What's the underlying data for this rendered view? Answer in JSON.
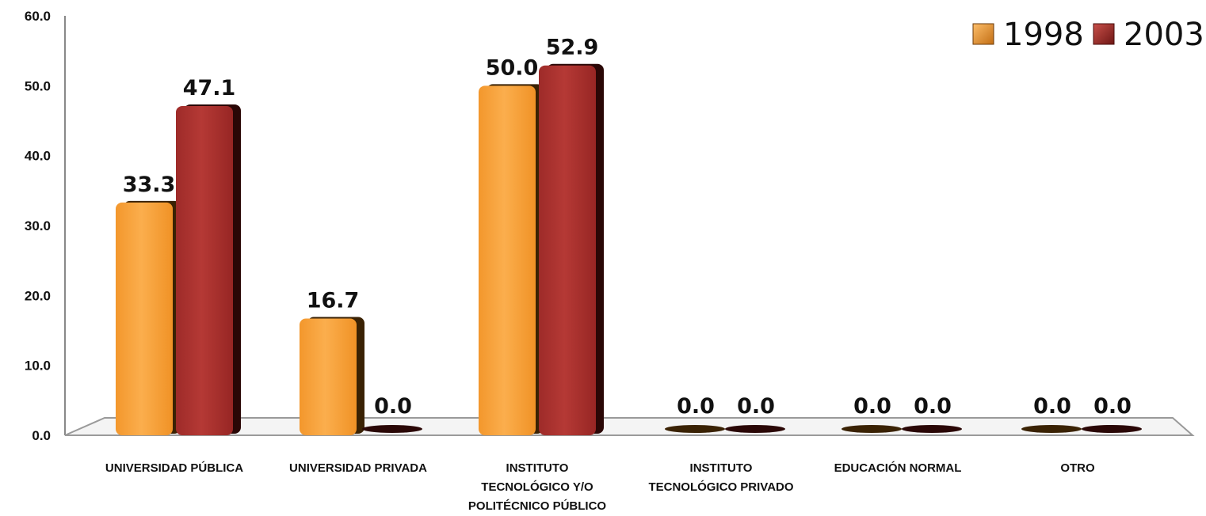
{
  "chart_data": {
    "type": "bar",
    "categories": [
      [
        "UNIVERSIDAD PÚBLICA"
      ],
      [
        "UNIVERSIDAD PRIVADA"
      ],
      [
        "INSTITUTO",
        "TECNOLÓGICO Y/O",
        "POLITÉCNICO PÚBLICO"
      ],
      [
        "INSTITUTO",
        "TECNOLÓGICO PRIVADO"
      ],
      [
        "EDUCACIÓN NORMAL"
      ],
      [
        "OTRO"
      ]
    ],
    "series": [
      {
        "name": "1998",
        "values": [
          33.3,
          16.7,
          50.0,
          0.0,
          0.0,
          0.0
        ],
        "value_labels": [
          "33.3",
          "16.7",
          "50.0",
          "0.0",
          "0.0",
          "0.0"
        ],
        "color": "#F7A23C"
      },
      {
        "name": "2003",
        "values": [
          47.1,
          0.0,
          52.9,
          0.0,
          0.0,
          0.0
        ],
        "value_labels": [
          "47.1",
          "0.0",
          "52.9",
          "0.0",
          "0.0",
          "0.0"
        ],
        "color": "#A8302E"
      }
    ],
    "yticks": [
      "0.0",
      "10.0",
      "20.0",
      "30.0",
      "40.0",
      "50.0",
      "60.0"
    ],
    "ylim": [
      0,
      60
    ],
    "legend_position": "top-right",
    "grid": false
  }
}
